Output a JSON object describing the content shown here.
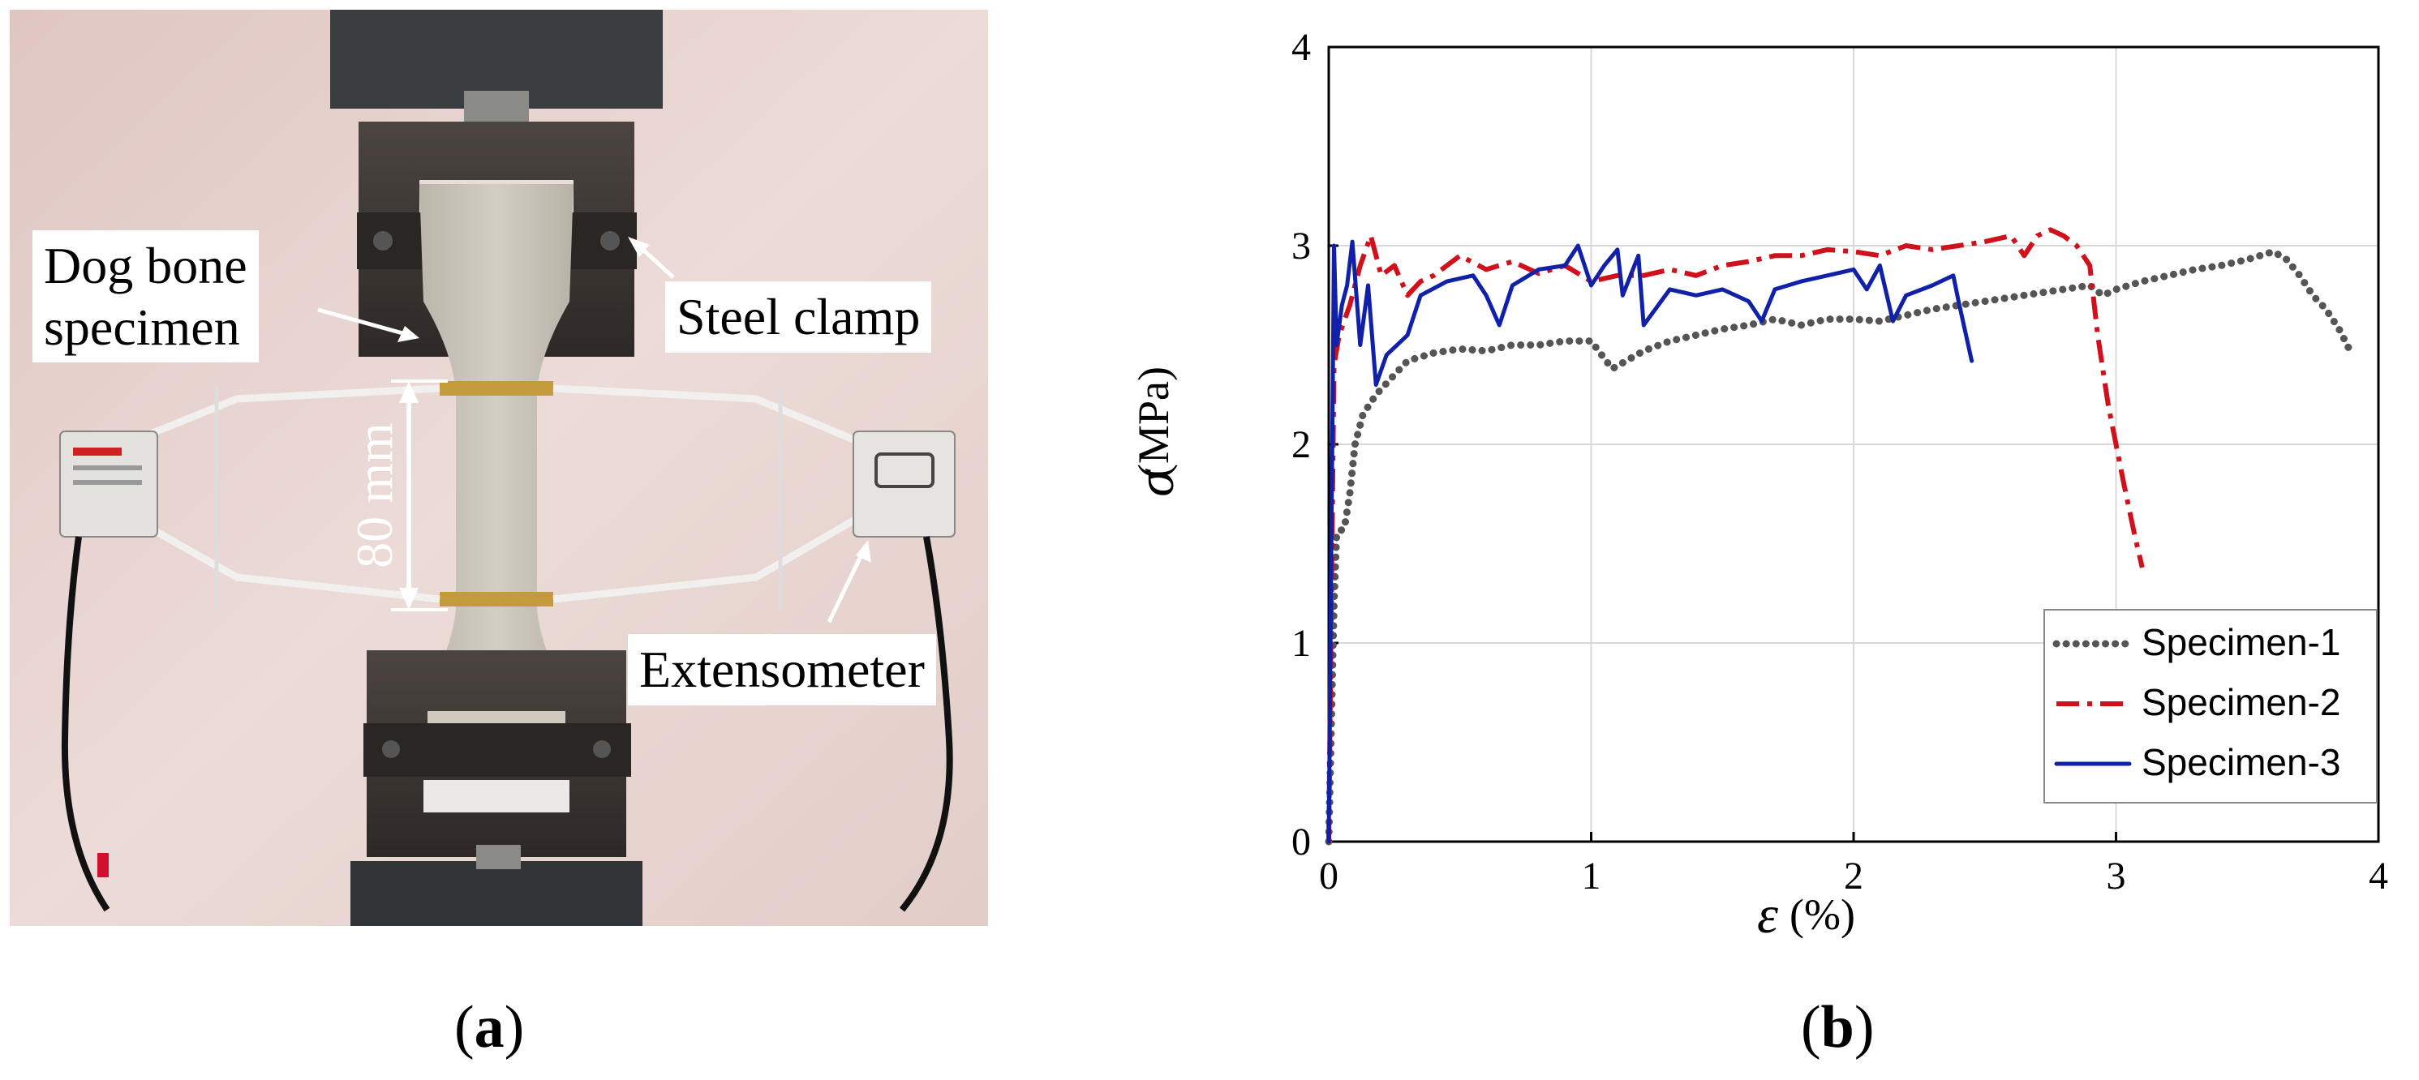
{
  "panel_a": {
    "caption_letter": "a",
    "annotations": {
      "specimen": [
        "Dog bone",
        "specimen"
      ],
      "clamp": "Steel clamp",
      "extensometer": "Extensometer",
      "gauge_length": "80 mm"
    }
  },
  "panel_b": {
    "caption_letter": "b"
  },
  "chart_data": {
    "type": "line",
    "title": "",
    "xlabel_symbol": "ε",
    "xlabel_unit": "(%)",
    "ylabel_symbol": "σ",
    "ylabel_unit": "(MPa)",
    "xlim": [
      0,
      4
    ],
    "ylim": [
      0,
      4
    ],
    "xticks": [
      0,
      1,
      2,
      3,
      4
    ],
    "yticks": [
      0,
      1,
      2,
      3,
      4
    ],
    "grid": true,
    "legend_position": "bottom-right",
    "series": [
      {
        "name": "Specimen-1",
        "color": "#555555",
        "style": "dotted",
        "points": [
          [
            0,
            0
          ],
          [
            0.01,
            0.6
          ],
          [
            0.02,
            1.2
          ],
          [
            0.03,
            1.55
          ],
          [
            0.06,
            1.58
          ],
          [
            0.08,
            1.75
          ],
          [
            0.1,
            2.0
          ],
          [
            0.13,
            2.15
          ],
          [
            0.18,
            2.25
          ],
          [
            0.25,
            2.35
          ],
          [
            0.3,
            2.42
          ],
          [
            0.4,
            2.46
          ],
          [
            0.5,
            2.48
          ],
          [
            0.6,
            2.47
          ],
          [
            0.7,
            2.5
          ],
          [
            0.8,
            2.5
          ],
          [
            0.9,
            2.52
          ],
          [
            1.0,
            2.52
          ],
          [
            1.08,
            2.38
          ],
          [
            1.2,
            2.47
          ],
          [
            1.3,
            2.52
          ],
          [
            1.4,
            2.55
          ],
          [
            1.5,
            2.58
          ],
          [
            1.6,
            2.6
          ],
          [
            1.7,
            2.63
          ],
          [
            1.8,
            2.6
          ],
          [
            1.9,
            2.63
          ],
          [
            2.0,
            2.63
          ],
          [
            2.1,
            2.62
          ],
          [
            2.2,
            2.65
          ],
          [
            2.3,
            2.68
          ],
          [
            2.4,
            2.7
          ],
          [
            2.5,
            2.72
          ],
          [
            2.6,
            2.74
          ],
          [
            2.7,
            2.76
          ],
          [
            2.8,
            2.78
          ],
          [
            2.9,
            2.8
          ],
          [
            2.95,
            2.75
          ],
          [
            3.0,
            2.78
          ],
          [
            3.1,
            2.82
          ],
          [
            3.2,
            2.85
          ],
          [
            3.3,
            2.88
          ],
          [
            3.4,
            2.9
          ],
          [
            3.5,
            2.93
          ],
          [
            3.6,
            2.97
          ],
          [
            3.65,
            2.93
          ],
          [
            3.7,
            2.85
          ],
          [
            3.75,
            2.75
          ],
          [
            3.8,
            2.68
          ],
          [
            3.85,
            2.58
          ],
          [
            3.9,
            2.45
          ]
        ]
      },
      {
        "name": "Specimen-2",
        "color": "#d0101a",
        "style": "dashdot",
        "points": [
          [
            0,
            0
          ],
          [
            0.01,
            1.2
          ],
          [
            0.02,
            2.4
          ],
          [
            0.04,
            2.55
          ],
          [
            0.08,
            2.7
          ],
          [
            0.12,
            2.9
          ],
          [
            0.16,
            3.05
          ],
          [
            0.2,
            2.85
          ],
          [
            0.25,
            2.9
          ],
          [
            0.3,
            2.75
          ],
          [
            0.35,
            2.82
          ],
          [
            0.4,
            2.85
          ],
          [
            0.5,
            2.95
          ],
          [
            0.6,
            2.88
          ],
          [
            0.7,
            2.92
          ],
          [
            0.8,
            2.86
          ],
          [
            0.9,
            2.9
          ],
          [
            1.0,
            2.82
          ],
          [
            1.1,
            2.85
          ],
          [
            1.2,
            2.85
          ],
          [
            1.3,
            2.88
          ],
          [
            1.4,
            2.85
          ],
          [
            1.5,
            2.9
          ],
          [
            1.6,
            2.92
          ],
          [
            1.7,
            2.95
          ],
          [
            1.8,
            2.95
          ],
          [
            1.9,
            2.98
          ],
          [
            2.0,
            2.97
          ],
          [
            2.1,
            2.95
          ],
          [
            2.2,
            3.0
          ],
          [
            2.3,
            2.98
          ],
          [
            2.4,
            3.0
          ],
          [
            2.5,
            3.02
          ],
          [
            2.6,
            3.05
          ],
          [
            2.65,
            2.95
          ],
          [
            2.7,
            3.05
          ],
          [
            2.75,
            3.08
          ],
          [
            2.8,
            3.05
          ],
          [
            2.85,
            3.0
          ],
          [
            2.9,
            2.9
          ],
          [
            2.93,
            2.55
          ],
          [
            2.97,
            2.2
          ],
          [
            3.0,
            2.0
          ],
          [
            3.03,
            1.8
          ],
          [
            3.07,
            1.55
          ],
          [
            3.1,
            1.38
          ]
        ]
      },
      {
        "name": "Specimen-3",
        "color": "#1020a8",
        "style": "solid",
        "points": [
          [
            0,
            0
          ],
          [
            0.01,
            1.5
          ],
          [
            0.02,
            3.0
          ],
          [
            0.03,
            2.5
          ],
          [
            0.05,
            2.7
          ],
          [
            0.07,
            2.8
          ],
          [
            0.09,
            3.02
          ],
          [
            0.12,
            2.5
          ],
          [
            0.15,
            2.8
          ],
          [
            0.18,
            2.3
          ],
          [
            0.22,
            2.45
          ],
          [
            0.3,
            2.55
          ],
          [
            0.35,
            2.75
          ],
          [
            0.45,
            2.82
          ],
          [
            0.55,
            2.85
          ],
          [
            0.6,
            2.75
          ],
          [
            0.65,
            2.6
          ],
          [
            0.7,
            2.8
          ],
          [
            0.8,
            2.88
          ],
          [
            0.9,
            2.9
          ],
          [
            0.95,
            3.0
          ],
          [
            1.0,
            2.8
          ],
          [
            1.05,
            2.9
          ],
          [
            1.1,
            2.98
          ],
          [
            1.12,
            2.75
          ],
          [
            1.18,
            2.95
          ],
          [
            1.2,
            2.6
          ],
          [
            1.3,
            2.78
          ],
          [
            1.4,
            2.75
          ],
          [
            1.5,
            2.78
          ],
          [
            1.6,
            2.72
          ],
          [
            1.65,
            2.62
          ],
          [
            1.7,
            2.78
          ],
          [
            1.8,
            2.82
          ],
          [
            1.9,
            2.85
          ],
          [
            2.0,
            2.88
          ],
          [
            2.05,
            2.78
          ],
          [
            2.1,
            2.9
          ],
          [
            2.15,
            2.62
          ],
          [
            2.2,
            2.75
          ],
          [
            2.3,
            2.8
          ],
          [
            2.38,
            2.85
          ],
          [
            2.4,
            2.72
          ],
          [
            2.45,
            2.42
          ]
        ]
      }
    ]
  }
}
